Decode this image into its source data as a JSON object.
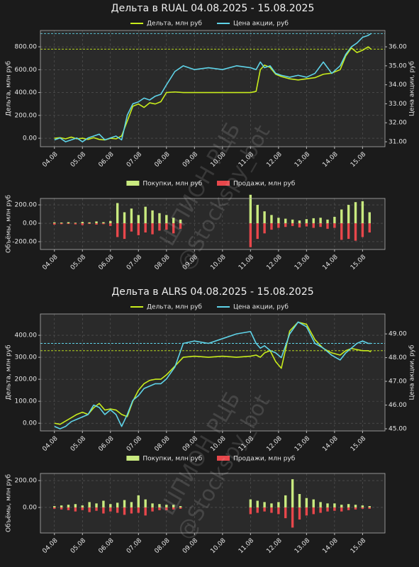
{
  "watermark": [
    "ШПИОН РЦБ",
    "@Stockspy_bot"
  ],
  "chart_data": [
    {
      "type": "line",
      "title": "Дельта в RUAL 04.08.2025 - 15.08.2025",
      "legend": "top",
      "grid": true,
      "ylabel": "Дельта, млн руб",
      "y2label": "Цена акции, руб",
      "x": [
        0,
        0.2,
        0.4,
        0.6,
        0.8,
        1.0,
        1.2,
        1.4,
        1.6,
        1.8,
        2.0,
        2.2,
        2.4,
        2.6,
        2.8,
        3.0,
        3.2,
        3.4,
        3.6,
        3.8,
        4.0,
        4.3,
        4.6,
        5.0,
        5.5,
        6.0,
        6.5,
        7.0,
        7.2,
        7.35,
        7.5,
        7.7,
        7.9,
        8.1,
        8.4,
        8.7,
        9.0,
        9.3,
        9.6,
        9.9,
        10.2,
        10.4,
        10.6,
        10.8,
        11.0,
        11.2,
        11.3
      ],
      "series": [
        {
          "name": "Дельта, млн руб",
          "color": "#c8ec1c",
          "values": [
            0,
            5,
            -5,
            10,
            -5,
            0,
            -10,
            5,
            -10,
            -15,
            0,
            -5,
            20,
            150,
            280,
            300,
            270,
            310,
            300,
            320,
            400,
            405,
            400,
            400,
            400,
            400,
            400,
            400,
            410,
            600,
            640,
            620,
            560,
            540,
            520,
            510,
            520,
            530,
            560,
            570,
            600,
            720,
            790,
            750,
            770,
            800,
            780
          ]
        },
        {
          "name": "Цена акции, руб",
          "color": "#5fd3e8",
          "axis": "y2",
          "values": [
            31.1,
            31.2,
            31.0,
            31.1,
            31.2,
            31.0,
            31.2,
            31.3,
            31.4,
            31.1,
            31.2,
            31.3,
            31.1,
            32.4,
            33.0,
            33.1,
            33.3,
            33.2,
            33.4,
            33.5,
            34.0,
            34.7,
            35.0,
            34.8,
            34.9,
            34.8,
            35.0,
            34.9,
            34.8,
            35.2,
            34.9,
            35.0,
            34.6,
            34.5,
            34.4,
            34.5,
            34.4,
            34.6,
            35.2,
            34.6,
            35.0,
            35.6,
            36.0,
            36.2,
            36.5,
            36.6,
            36.7
          ]
        }
      ],
      "reference_lines": [
        {
          "axis": "y",
          "value": 780,
          "color": "#c8ec1c"
        },
        {
          "axis": "y2",
          "value": 36.7,
          "color": "#5fd3e8"
        }
      ],
      "xlim": [
        -0.5,
        11.8
      ],
      "xticks": [
        {
          "value": 0,
          "label": "04.08"
        },
        {
          "value": 1,
          "label": "05.08"
        },
        {
          "value": 2,
          "label": "06.08"
        },
        {
          "value": 3,
          "label": "07.08"
        },
        {
          "value": 4,
          "label": "08.08"
        },
        {
          "value": 5,
          "label": "09.08"
        },
        {
          "value": 6,
          "label": "10.08"
        },
        {
          "value": 7,
          "label": "11.08"
        },
        {
          "value": 8,
          "label": "12.08"
        },
        {
          "value": 9,
          "label": "13.08"
        },
        {
          "value": 10,
          "label": "14.08"
        },
        {
          "value": 11,
          "label": "15.08"
        }
      ],
      "ylim": [
        -74,
        943
      ],
      "yticks": [
        {
          "value": 0,
          "label": "0.00"
        },
        {
          "value": 200,
          "label": "200.00"
        },
        {
          "value": 400,
          "label": "400.00"
        },
        {
          "value": 600,
          "label": "600.00"
        },
        {
          "value": 800,
          "label": "800.00"
        }
      ],
      "y2lim": [
        30.74,
        36.86
      ],
      "y2ticks": [
        {
          "value": 31,
          "label": "31.00"
        },
        {
          "value": 32,
          "label": "32.00"
        },
        {
          "value": 33,
          "label": "33.00"
        },
        {
          "value": 34,
          "label": "34.00"
        },
        {
          "value": 35,
          "label": "35.00"
        },
        {
          "value": 36,
          "label": "36.00"
        }
      ]
    },
    {
      "type": "bar",
      "legend": "top",
      "grid": true,
      "ylabel": "Объёмы, млн руб",
      "x": [
        0,
        0.25,
        0.5,
        0.75,
        1,
        1.25,
        1.5,
        1.75,
        2,
        2.25,
        2.5,
        2.75,
        3,
        3.25,
        3.5,
        3.75,
        4,
        4.25,
        4.5,
        7,
        7.25,
        7.5,
        7.75,
        8,
        8.25,
        8.5,
        8.75,
        9,
        9.25,
        9.5,
        9.75,
        10,
        10.25,
        10.5,
        10.75,
        11,
        11.25
      ],
      "series": [
        {
          "name": "Покупки, млн руб",
          "color": "#c9ea7f",
          "values": [
            10,
            8,
            12,
            6,
            15,
            10,
            20,
            12,
            25,
            220,
            120,
            160,
            90,
            180,
            140,
            110,
            90,
            60,
            40,
            310,
            200,
            130,
            90,
            60,
            50,
            40,
            30,
            45,
            55,
            60,
            40,
            70,
            150,
            200,
            230,
            240,
            120
          ]
        },
        {
          "name": "Продажи, млн руб",
          "color": "#e8474b",
          "values": [
            -15,
            -10,
            -8,
            -12,
            -20,
            -8,
            -15,
            -10,
            -30,
            -150,
            -170,
            -90,
            -130,
            -100,
            -120,
            -80,
            -70,
            -110,
            -60,
            -260,
            -170,
            -110,
            -70,
            -50,
            -40,
            -30,
            -45,
            -35,
            -50,
            -40,
            -60,
            -50,
            -180,
            -170,
            -190,
            -150,
            -100
          ]
        }
      ],
      "xlim": [
        -0.5,
        11.8
      ],
      "xticks": [
        {
          "value": 0,
          "label": "04.08"
        },
        {
          "value": 1,
          "label": "05.08"
        },
        {
          "value": 2,
          "label": "06.08"
        },
        {
          "value": 3,
          "label": "07.08"
        },
        {
          "value": 4,
          "label": "08.08"
        },
        {
          "value": 5,
          "label": "09.08"
        },
        {
          "value": 6,
          "label": "10.08"
        },
        {
          "value": 7,
          "label": "11.08"
        },
        {
          "value": 8,
          "label": "12.08"
        },
        {
          "value": 9,
          "label": "13.08"
        },
        {
          "value": 10,
          "label": "14.08"
        },
        {
          "value": 11,
          "label": "15.08"
        }
      ],
      "ylim": [
        -285,
        270
      ],
      "yticks": [
        {
          "value": -200,
          "label": "-200.00"
        },
        {
          "value": 0,
          "label": "0.00"
        },
        {
          "value": 200,
          "label": "200.00"
        }
      ]
    },
    {
      "type": "line",
      "title": "Дельта в ALRS 04.08.2025 - 15.08.2025",
      "legend": "top",
      "grid": true,
      "ylabel": "Дельта, млн руб",
      "y2label": "Цена акции, руб",
      "x": [
        0,
        0.2,
        0.4,
        0.6,
        0.8,
        1.0,
        1.2,
        1.4,
        1.6,
        1.8,
        2.0,
        2.2,
        2.4,
        2.6,
        2.8,
        3.0,
        3.2,
        3.4,
        3.6,
        3.8,
        4.0,
        4.3,
        4.6,
        5.0,
        5.5,
        6.0,
        6.5,
        7.0,
        7.2,
        7.35,
        7.5,
        7.7,
        7.9,
        8.1,
        8.4,
        8.7,
        9.0,
        9.3,
        9.6,
        9.9,
        10.2,
        10.4,
        10.6,
        10.8,
        11.0,
        11.2,
        11.3
      ],
      "series": [
        {
          "name": "Дельта, млн руб",
          "color": "#c8ec1c",
          "values": [
            0,
            -5,
            10,
            25,
            40,
            50,
            40,
            70,
            90,
            60,
            65,
            60,
            40,
            30,
            100,
            150,
            180,
            195,
            200,
            200,
            220,
            260,
            300,
            305,
            300,
            305,
            300,
            305,
            310,
            300,
            320,
            330,
            280,
            250,
            420,
            460,
            450,
            380,
            340,
            320,
            310,
            330,
            340,
            335,
            330,
            330,
            325
          ]
        },
        {
          "name": "Цена акции, руб",
          "color": "#5fd3e8",
          "axis": "y2",
          "values": [
            45.1,
            45.0,
            45.1,
            45.3,
            45.4,
            45.5,
            45.6,
            46.0,
            45.9,
            45.6,
            45.8,
            45.6,
            45.1,
            45.6,
            46.2,
            46.4,
            46.7,
            46.8,
            46.9,
            46.9,
            47.1,
            47.6,
            48.6,
            48.7,
            48.6,
            48.8,
            49.0,
            49.1,
            48.6,
            48.4,
            48.5,
            48.3,
            48.2,
            48.0,
            49.0,
            49.5,
            49.3,
            48.6,
            48.4,
            48.1,
            47.9,
            48.2,
            48.4,
            48.6,
            48.7,
            48.6,
            48.6
          ]
        }
      ],
      "reference_lines": [
        {
          "axis": "y",
          "value": 330,
          "color": "#c8ec1c"
        },
        {
          "axis": "y2",
          "value": 48.6,
          "color": "#5fd3e8"
        }
      ],
      "xlim": [
        -0.5,
        11.8
      ],
      "xticks": [
        {
          "value": 0,
          "label": "04.08"
        },
        {
          "value": 1,
          "label": "05.08"
        },
        {
          "value": 2,
          "label": "06.08"
        },
        {
          "value": 3,
          "label": "07.08"
        },
        {
          "value": 4,
          "label": "08.08"
        },
        {
          "value": 5,
          "label": "09.08"
        },
        {
          "value": 6,
          "label": "10.08"
        },
        {
          "value": 7,
          "label": "11.08"
        },
        {
          "value": 8,
          "label": "12.08"
        },
        {
          "value": 9,
          "label": "13.08"
        },
        {
          "value": 10,
          "label": "14.08"
        },
        {
          "value": 11,
          "label": "15.08"
        }
      ],
      "ylim": [
        -35,
        497
      ],
      "yticks": [
        {
          "value": 0,
          "label": "0.00"
        },
        {
          "value": 100,
          "label": "100.00"
        },
        {
          "value": 200,
          "label": "200.00"
        },
        {
          "value": 300,
          "label": "300.00"
        },
        {
          "value": 400,
          "label": "400.00"
        }
      ],
      "y2lim": [
        44.91,
        49.84
      ],
      "y2ticks": [
        {
          "value": 45,
          "label": "45.00"
        },
        {
          "value": 46,
          "label": "46.00"
        },
        {
          "value": 47,
          "label": "47.00"
        },
        {
          "value": 48,
          "label": "48.00"
        },
        {
          "value": 49,
          "label": "49.00"
        }
      ]
    },
    {
      "type": "bar",
      "legend": "top",
      "grid": true,
      "ylabel": "Объёмы, млн руб",
      "x": [
        0,
        0.25,
        0.5,
        0.75,
        1,
        1.25,
        1.5,
        1.75,
        2,
        2.25,
        2.5,
        2.75,
        3,
        3.25,
        3.5,
        3.75,
        4,
        4.25,
        4.5,
        7,
        7.25,
        7.5,
        7.75,
        8,
        8.25,
        8.5,
        8.75,
        9,
        9.25,
        9.5,
        9.75,
        10,
        10.25,
        10.5,
        10.75,
        11,
        11.25
      ],
      "series": [
        {
          "name": "Покупки, млн руб",
          "color": "#c9ea7f",
          "values": [
            10,
            15,
            20,
            25,
            15,
            40,
            30,
            50,
            25,
            35,
            55,
            40,
            90,
            60,
            30,
            25,
            20,
            20,
            10,
            60,
            50,
            40,
            30,
            40,
            90,
            210,
            100,
            70,
            60,
            40,
            30,
            30,
            20,
            25,
            20,
            15,
            10
          ]
        },
        {
          "name": "Продажи, млн руб",
          "color": "#e8474b",
          "values": [
            -10,
            -15,
            -20,
            -30,
            -20,
            -35,
            -25,
            -45,
            -30,
            -40,
            -55,
            -45,
            -40,
            -60,
            -30,
            -20,
            -20,
            -15,
            -10,
            -50,
            -40,
            -30,
            -40,
            -50,
            -80,
            -150,
            -90,
            -60,
            -50,
            -40,
            -30,
            -25,
            -30,
            -20,
            -15,
            -10,
            -10
          ]
        }
      ],
      "xlim": [
        -0.5,
        11.8
      ],
      "xticks": [
        {
          "value": 0,
          "label": "04.08"
        },
        {
          "value": 1,
          "label": "05.08"
        },
        {
          "value": 2,
          "label": "06.08"
        },
        {
          "value": 3,
          "label": "07.08"
        },
        {
          "value": 4,
          "label": "08.08"
        },
        {
          "value": 5,
          "label": "09.08"
        },
        {
          "value": 6,
          "label": "10.08"
        },
        {
          "value": 7,
          "label": "11.08"
        },
        {
          "value": 8,
          "label": "12.08"
        },
        {
          "value": 9,
          "label": "13.08"
        },
        {
          "value": 10,
          "label": "14.08"
        },
        {
          "value": 11,
          "label": "15.08"
        }
      ],
      "ylim": [
        -190,
        253
      ],
      "yticks": [
        {
          "value": 0,
          "label": "0.00"
        },
        {
          "value": 200,
          "label": "200.00"
        }
      ]
    }
  ]
}
